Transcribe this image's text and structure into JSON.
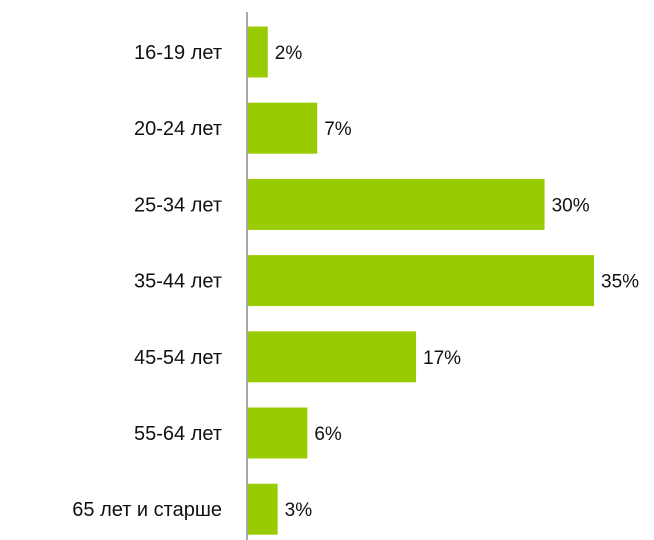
{
  "chart_data": {
    "type": "bar",
    "orientation": "horizontal",
    "categories": [
      "16-19 лет",
      "20-24 лет",
      "25-34 лет",
      "35-44 лет",
      "45-54 лет",
      "55-64 лет",
      "65 лет и старше"
    ],
    "values": [
      2,
      7,
      30,
      35,
      17,
      6,
      3
    ],
    "value_labels": [
      "2%",
      "7%",
      "30%",
      "35%",
      "17%",
      "6%",
      "3%"
    ],
    "unit": "%",
    "title": "",
    "xlabel": "",
    "ylabel": "",
    "xlim": [
      0,
      35
    ],
    "grid": false,
    "legend": "none",
    "bar_color": "#99cc00"
  }
}
